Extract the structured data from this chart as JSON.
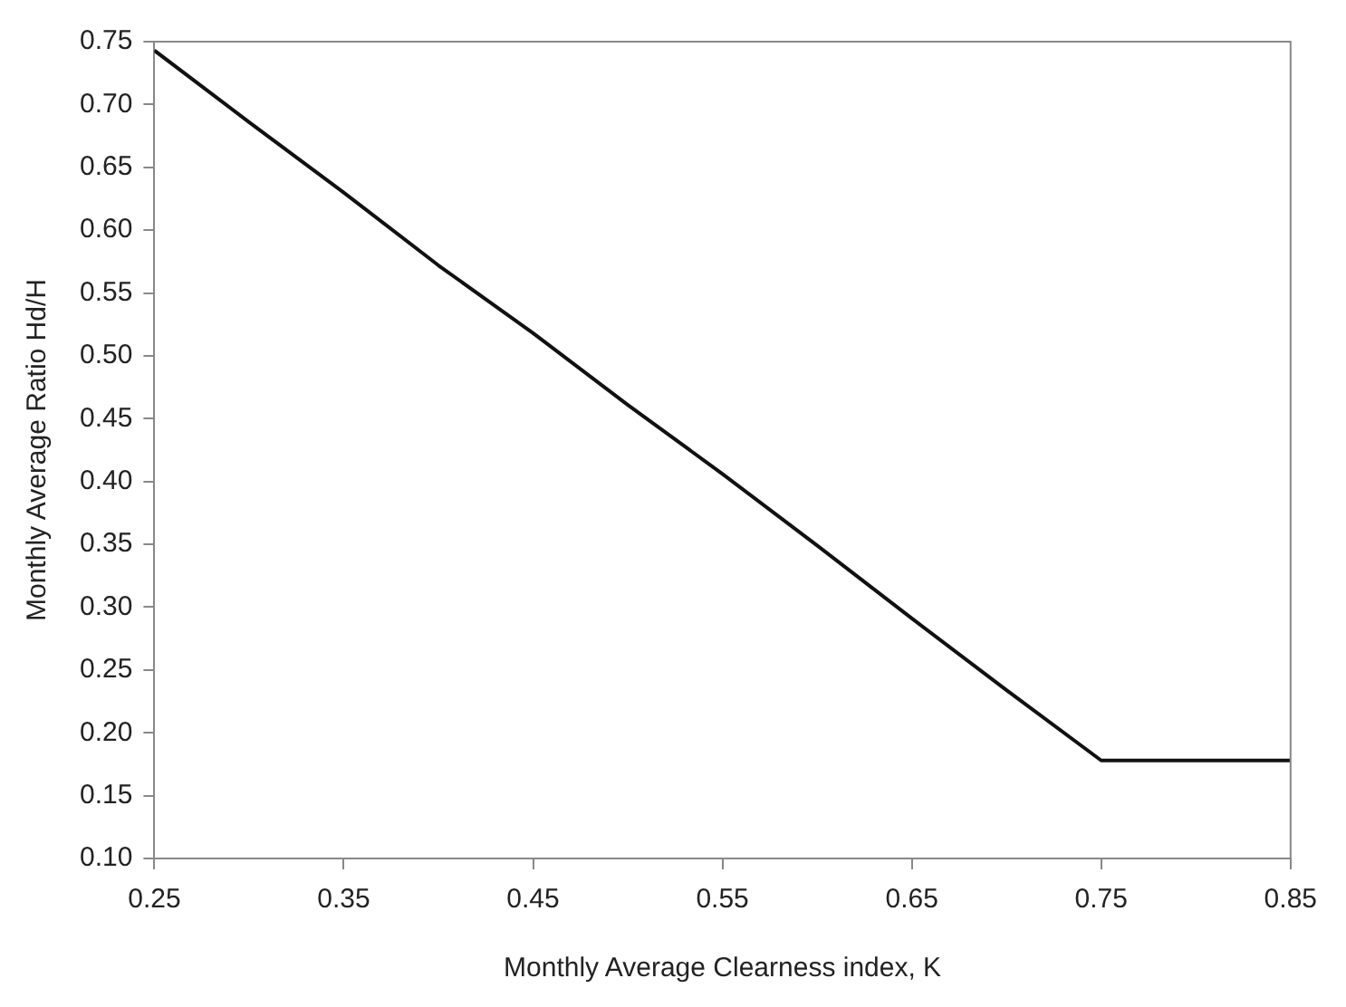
{
  "chart_data": {
    "type": "line",
    "xlabel": "Monthly Average Clearness index, K",
    "ylabel": "Monthly Average Ratio Hd/H",
    "x": [
      0.25,
      0.3,
      0.35,
      0.4,
      0.45,
      0.5,
      0.55,
      0.6,
      0.65,
      0.7,
      0.75,
      0.85
    ],
    "series": [
      {
        "color": "#111111",
        "values": [
          0.743,
          0.686,
          0.63,
          0.572,
          0.518,
          0.461,
          0.406,
          0.349,
          0.291,
          0.234,
          0.178,
          0.178
        ]
      }
    ],
    "xlim": [
      0.25,
      0.85
    ],
    "ylim": [
      0.1,
      0.75
    ],
    "xticks": [
      0.25,
      0.35,
      0.45,
      0.55,
      0.65,
      0.75,
      0.85
    ],
    "yticks": [
      {
        "value": 0.1,
        "label": "0.10"
      },
      0.15,
      {
        "value": 0.2,
        "label": "0.20"
      },
      0.25,
      {
        "value": 0.3,
        "label": "0.30"
      },
      0.35,
      {
        "value": 0.4,
        "label": "0.40"
      },
      0.45,
      {
        "value": 0.5,
        "label": "0.50"
      },
      0.55,
      {
        "value": 0.6,
        "label": "0.60"
      },
      0.65,
      {
        "value": 0.7,
        "label": "0.70"
      },
      0.75
    ],
    "grid": false,
    "legend": false,
    "marker": "none",
    "line_style": "solid"
  }
}
